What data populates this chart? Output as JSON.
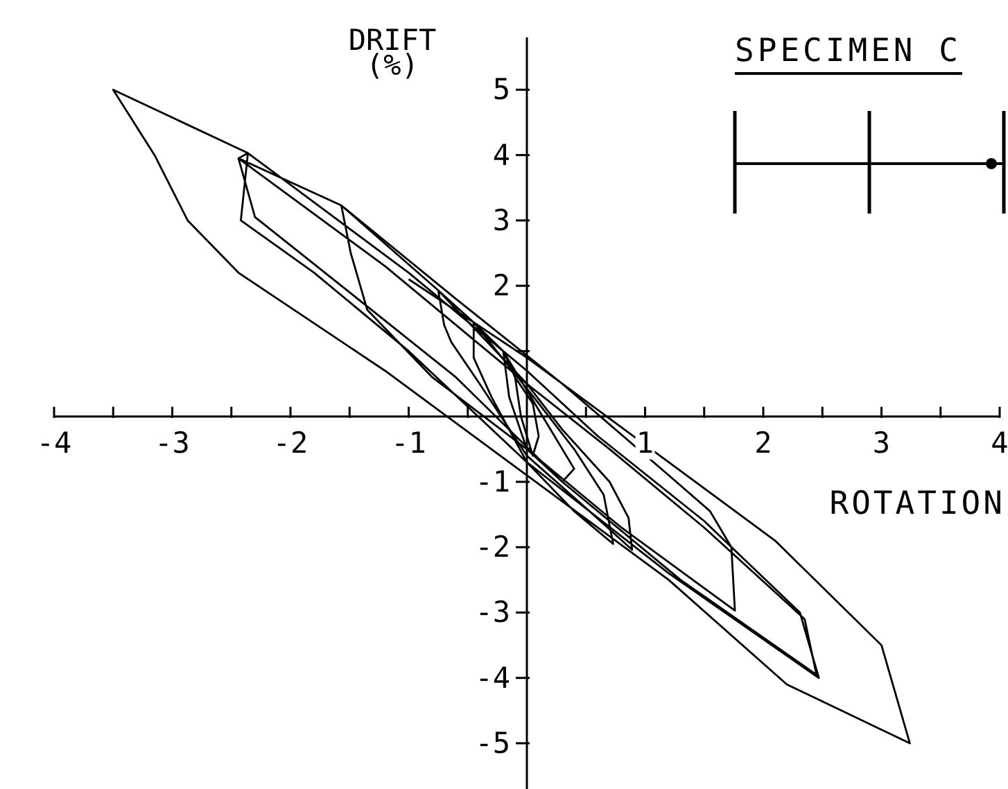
{
  "chart_data": {
    "type": "line",
    "title": "SPECIMEN C",
    "xlabel": "ROTATION",
    "ylabel": "DRIFT (%)",
    "xlim": [
      -4,
      4
    ],
    "ylim": [
      -5.7,
      5.8
    ],
    "xticks": [
      -4,
      {
        "value": -3.5,
        "label": null
      },
      -3,
      {
        "value": -2.5,
        "label": null
      },
      -2,
      {
        "value": -1.5,
        "label": null
      },
      -1,
      {
        "value": -0.5,
        "label": null
      },
      {
        "value": 0.5,
        "label": null
      },
      1,
      {
        "value": 1.5,
        "label": null
      },
      2,
      {
        "value": 2.5,
        "label": null
      },
      3,
      {
        "value": 3.5,
        "label": null
      },
      4
    ],
    "yticks": [
      -5,
      -4,
      -3,
      -2,
      -1,
      {
        "value": 1,
        "label": null
      },
      2,
      3,
      4,
      5
    ],
    "series": [
      {
        "color": "#000000",
        "x": [
          -0.1,
          -0.05,
          0.05,
          0.1,
          0.05,
          -0.1,
          -0.2,
          -0.15,
          0,
          0.3,
          0.4,
          0.2,
          0,
          -0.2,
          -0.45,
          -0.45,
          -0.3,
          0,
          0.4,
          0.73,
          0.65,
          0.4,
          0.1,
          -0.45,
          -0.75,
          -0.7,
          -0.64,
          -0.4,
          0,
          0.5,
          0.89,
          0.86,
          0.7,
          0.3,
          0,
          -0.75,
          -1.57,
          -1.49,
          -1.35,
          -0.8,
          0,
          0.8,
          1.76,
          1.73,
          1.55,
          1.2,
          0.3,
          -0.6,
          -1.57,
          -2.44,
          -2.3,
          -1.5,
          -0.6,
          0.3,
          1.3,
          2.45,
          2.35,
          1.5,
          0.7,
          0,
          -1.2,
          -2.44,
          -2.36,
          -2.42,
          -1.8,
          -1.0,
          0,
          1.2,
          2.47,
          2.31,
          1.5,
          0.6,
          0,
          -1.0,
          -2.36,
          -3.5,
          -3.15,
          -2.87,
          -2.44,
          -1.2,
          0,
          1.2,
          2.2,
          3.24,
          3.0,
          2.1,
          1.2,
          0,
          -1.0
        ],
        "values": [
          0.6,
          0,
          -0.6,
          -0.3,
          0.2,
          0.6,
          1.0,
          0.3,
          -0.5,
          -1.0,
          -0.8,
          -0.2,
          0.4,
          1.0,
          1.44,
          0.9,
          0.3,
          -0.7,
          -1.45,
          -1.95,
          -1.2,
          -0.5,
          0.2,
          1.44,
          1.93,
          1.4,
          1.14,
          0.5,
          -0.6,
          -1.4,
          -2.04,
          -1.55,
          -1.0,
          -0.2,
          0.5,
          1.93,
          3.23,
          2.5,
          1.63,
          0.6,
          -0.5,
          -1.7,
          -2.97,
          -2.0,
          -1.45,
          -0.9,
          0.5,
          1.8,
          3.23,
          3.95,
          3.05,
          1.9,
          0.6,
          -1.0,
          -2.5,
          -3.95,
          -3.1,
          -1.7,
          -0.5,
          0.5,
          2.3,
          3.95,
          4.03,
          3.0,
          2.2,
          1.0,
          -0.7,
          -2.4,
          -4.0,
          -3.0,
          -1.6,
          -0.3,
          0.7,
          2.2,
          4.03,
          5,
          4,
          3,
          2.2,
          0.7,
          -0.9,
          -2.5,
          -4.1,
          -5,
          -3.5,
          -1.9,
          -0.7,
          0.9,
          2.1
        ]
      }
    ]
  }
}
